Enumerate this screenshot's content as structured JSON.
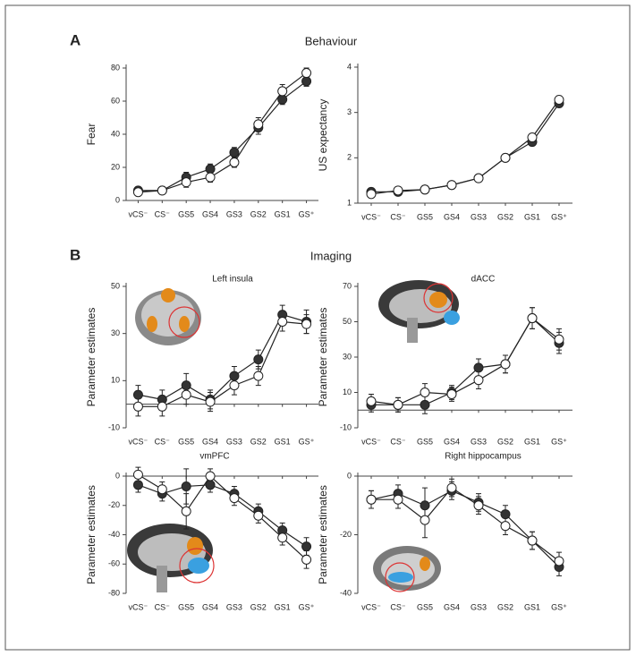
{
  "figure": {
    "label_a": "A",
    "title_a": "Behaviour",
    "label_b": "B",
    "title_b": "Imaging"
  },
  "chart_data": [
    {
      "type": "line",
      "y_label": "Fear",
      "categories": [
        "vCS⁻",
        "CS⁻",
        "GS5",
        "GS4",
        "GS3",
        "GS2",
        "GS1",
        "GS⁺"
      ],
      "ylim": [
        0,
        80
      ],
      "yticks": [
        0,
        20,
        40,
        60,
        80
      ],
      "series": [
        {
          "color": "#333333",
          "values": [
            6,
            6,
            14,
            19,
            29,
            44,
            61,
            72
          ],
          "errors": [
            2,
            2,
            3,
            3,
            3,
            4,
            3,
            3
          ]
        },
        {
          "color": "#ffffff",
          "values": [
            5,
            6,
            11,
            14,
            23,
            46,
            66,
            77
          ],
          "errors": [
            2,
            2,
            3,
            3,
            3,
            4,
            4,
            3
          ]
        }
      ]
    },
    {
      "type": "line",
      "y_label": "US expectancy",
      "categories": [
        "vCS⁻",
        "CS⁻",
        "GS5",
        "GS4",
        "GS3",
        "GS2",
        "GS1",
        "GS⁺"
      ],
      "ylim": [
        1,
        4
      ],
      "yticks": [
        1,
        2,
        3,
        4
      ],
      "series": [
        {
          "color": "#333333",
          "values": [
            1.25,
            1.25,
            1.3,
            1.4,
            1.55,
            2.0,
            2.35,
            3.2
          ],
          "errors": [
            0.05,
            0.05,
            0.05,
            0.05,
            0.05,
            0.08,
            0.08,
            0.08
          ]
        },
        {
          "color": "#ffffff",
          "values": [
            1.2,
            1.28,
            1.3,
            1.4,
            1.55,
            2.0,
            2.45,
            3.28
          ],
          "errors": [
            0.05,
            0.05,
            0.05,
            0.05,
            0.05,
            0.08,
            0.08,
            0.08
          ]
        }
      ]
    },
    {
      "type": "line",
      "title": "Left insula",
      "y_label": "Parameter estimates",
      "categories": [
        "vCS⁻",
        "CS⁻",
        "GS5",
        "GS4",
        "GS3",
        "GS2",
        "GS1",
        "GS⁺"
      ],
      "ylim": [
        -10,
        50
      ],
      "yticks": [
        -10,
        10,
        30,
        50
      ],
      "series": [
        {
          "color": "#333333",
          "values": [
            4,
            2,
            8,
            2,
            12,
            19,
            38,
            35
          ],
          "errors": [
            4,
            4,
            5,
            4,
            4,
            4,
            4,
            5
          ]
        },
        {
          "color": "#ffffff",
          "values": [
            -1,
            -1,
            4,
            1,
            8,
            12,
            35,
            34
          ],
          "errors": [
            4,
            4,
            4,
            4,
            4,
            4,
            4,
            4
          ]
        }
      ]
    },
    {
      "type": "line",
      "title": "dACC",
      "y_label": "Parameter estimates",
      "categories": [
        "vCS⁻",
        "CS⁻",
        "GS5",
        "GS4",
        "GS3",
        "GS2",
        "GS1",
        "GS⁺"
      ],
      "ylim": [
        -10,
        70
      ],
      "yticks": [
        -10,
        10,
        30,
        50,
        70
      ],
      "series": [
        {
          "color": "#333333",
          "values": [
            3,
            3,
            3,
            10,
            24,
            26,
            52,
            38
          ],
          "errors": [
            4,
            4,
            5,
            4,
            5,
            5,
            6,
            6
          ]
        },
        {
          "color": "#ffffff",
          "values": [
            5,
            3,
            10,
            9,
            17,
            26,
            52,
            40
          ],
          "errors": [
            4,
            4,
            5,
            4,
            5,
            5,
            6,
            6
          ]
        }
      ]
    },
    {
      "type": "line",
      "title": "vmPFC",
      "y_label": "Parameter estimates",
      "categories": [
        "vCS⁻",
        "CS⁻",
        "GS5",
        "GS4",
        "GS3",
        "GS2",
        "GS1",
        "GS⁺"
      ],
      "ylim": [
        -80,
        0
      ],
      "yticks": [
        -80,
        -60,
        -40,
        -20,
        0
      ],
      "series": [
        {
          "color": "#333333",
          "values": [
            -6,
            -12,
            -7,
            -6,
            -12,
            -24,
            -37,
            -48
          ],
          "errors": [
            5,
            5,
            12,
            5,
            5,
            5,
            5,
            6
          ]
        },
        {
          "color": "#ffffff",
          "values": [
            1,
            -9,
            -24,
            0,
            -15,
            -27,
            -42,
            -57
          ],
          "errors": [
            5,
            5,
            12,
            5,
            5,
            5,
            5,
            6
          ]
        }
      ]
    },
    {
      "type": "line",
      "title": "Right hippocampus",
      "y_label": "Parameter estimates",
      "categories": [
        "vCS⁻",
        "CS⁻",
        "GS5",
        "GS4",
        "GS3",
        "GS2",
        "GS1",
        "GS⁺"
      ],
      "ylim": [
        -40,
        0
      ],
      "yticks": [
        -40,
        -20,
        0
      ],
      "series": [
        {
          "color": "#333333",
          "values": [
            -8,
            -6,
            -10,
            -5,
            -9,
            -13,
            -22,
            -31
          ],
          "errors": [
            3,
            3,
            6,
            3,
            3,
            3,
            3,
            3
          ]
        },
        {
          "color": "#ffffff",
          "values": [
            -8,
            -8,
            -15,
            -4,
            -10,
            -17,
            -22,
            -29
          ],
          "errors": [
            3,
            3,
            6,
            3,
            3,
            3,
            3,
            3
          ]
        }
      ]
    }
  ]
}
